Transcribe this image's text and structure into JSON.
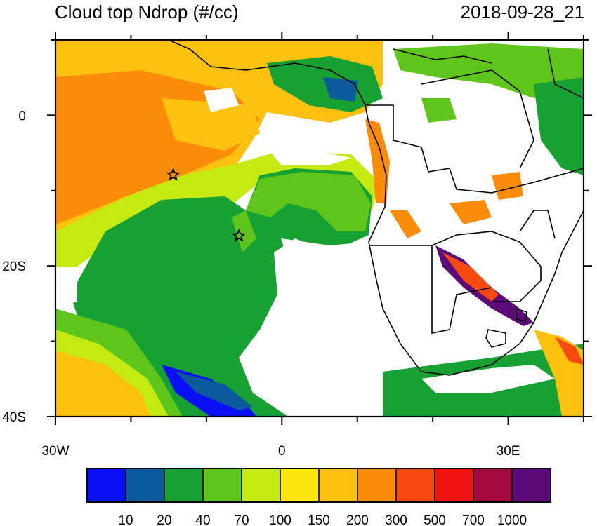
{
  "title": "Cloud top Ndrop (#/cc)",
  "timestamp": "2018-09-28_21",
  "map": {
    "lon_range": [
      -30,
      40
    ],
    "lat_range": [
      -40,
      10
    ],
    "x_ticks": [
      {
        "lon": -30,
        "label": "30W"
      },
      {
        "lon": 0,
        "label": "0"
      },
      {
        "lon": 30,
        "label": "30E"
      }
    ],
    "y_ticks": [
      {
        "lat": 0,
        "label": "0"
      },
      {
        "lat": -20,
        "label": "20S"
      },
      {
        "lat": -40,
        "label": "40S"
      }
    ],
    "markers": [
      {
        "lon": -14.4,
        "lat": -7.9
      },
      {
        "lon": -5.7,
        "lat": -16.0
      }
    ]
  },
  "colorbar": {
    "colors": [
      "#0a10f5",
      "#0a5a9c",
      "#16a132",
      "#5ec61a",
      "#c5ea12",
      "#fde510",
      "#fcc00e",
      "#fb8c0a",
      "#f84a10",
      "#f11410",
      "#a20a40",
      "#5c0a78"
    ],
    "labels": [
      "10",
      "20",
      "40",
      "70",
      "100",
      "150",
      "200",
      "300",
      "500",
      "700",
      "1000"
    ]
  }
}
